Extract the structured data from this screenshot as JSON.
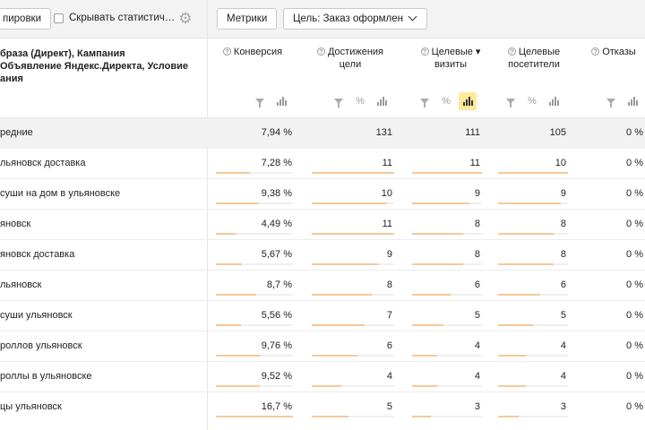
{
  "toolbar": {
    "grouping_label": "пировки",
    "hide_stats_label": "Скрывать статистич…",
    "metrics_label": "Метрики",
    "goal_label": "Цель: Заказ оформлен"
  },
  "header": {
    "dimension_title_lines": [
      "браза (Директ), Кампания",
      "Объявление Яндекс.Директа, Условие",
      "ания"
    ],
    "columns": [
      {
        "line1": "Конверсия",
        "line2": ""
      },
      {
        "line1": "Достижения",
        "line2": "цели"
      },
      {
        "line1": "Целевые ▾",
        "line2": "визиты"
      },
      {
        "line1": "Целевые",
        "line2": "посетители"
      },
      {
        "line1": "Отказы",
        "line2": ""
      }
    ],
    "help_glyph": "?",
    "percent_glyph": "%"
  },
  "rows": [
    {
      "name": "редние",
      "conv": "7,94 %",
      "goals": "131",
      "visits": "111",
      "visitors": "105",
      "bounce": "0 %",
      "conv_frac": 0,
      "goals_frac": 0,
      "visits_frac": 0,
      "visitors_frac": 0
    },
    {
      "name": "льяновск доставка",
      "conv": "7,28 %",
      "goals": "11",
      "visits": "11",
      "visitors": "10",
      "bounce": "0 %",
      "conv_frac": 0.44,
      "goals_frac": 1.0,
      "visits_frac": 1.0,
      "visitors_frac": 1.0
    },
    {
      "name": "суши на дом в ульяновске",
      "conv": "9,38 %",
      "goals": "10",
      "visits": "9",
      "visitors": "9",
      "bounce": "0 %",
      "conv_frac": 0.56,
      "goals_frac": 0.91,
      "visits_frac": 0.82,
      "visitors_frac": 0.9
    },
    {
      "name": "яновск",
      "conv": "4,49 %",
      "goals": "11",
      "visits": "8",
      "visitors": "8",
      "bounce": "0 %",
      "conv_frac": 0.27,
      "goals_frac": 1.0,
      "visits_frac": 0.73,
      "visitors_frac": 0.8
    },
    {
      "name": "яновск доставка",
      "conv": "5,67 %",
      "goals": "9",
      "visits": "8",
      "visitors": "8",
      "bounce": "0 %",
      "conv_frac": 0.34,
      "goals_frac": 0.82,
      "visits_frac": 0.73,
      "visitors_frac": 0.8
    },
    {
      "name": "льяновск",
      "conv": "8,7 %",
      "goals": "8",
      "visits": "6",
      "visitors": "6",
      "bounce": "0 %",
      "conv_frac": 0.52,
      "goals_frac": 0.73,
      "visits_frac": 0.55,
      "visitors_frac": 0.6
    },
    {
      "name": "суши ульяновск",
      "conv": "5,56 %",
      "goals": "7",
      "visits": "5",
      "visitors": "5",
      "bounce": "0 %",
      "conv_frac": 0.33,
      "goals_frac": 0.64,
      "visits_frac": 0.45,
      "visitors_frac": 0.5
    },
    {
      "name": "роллов ульяновск",
      "conv": "9,76 %",
      "goals": "6",
      "visits": "4",
      "visitors": "4",
      "bounce": "0 %",
      "conv_frac": 0.58,
      "goals_frac": 0.55,
      "visits_frac": 0.36,
      "visitors_frac": 0.4
    },
    {
      "name": "роллы в ульяновске",
      "conv": "9,52 %",
      "goals": "4",
      "visits": "4",
      "visitors": "4",
      "bounce": "0 %",
      "conv_frac": 0.57,
      "goals_frac": 0.36,
      "visits_frac": 0.36,
      "visitors_frac": 0.4
    },
    {
      "name": "цы ульяновск",
      "conv": "16,7 %",
      "goals": "5",
      "visits": "3",
      "visitors": "3",
      "bounce": "0 %",
      "conv_frac": 1.0,
      "goals_frac": 0.45,
      "visits_frac": 0.27,
      "visitors_frac": 0.3
    }
  ],
  "colors": {
    "bar_fill": "#f6c89a",
    "avg_row_bg": "#f2f2f2",
    "active_tool": "#ffe99a"
  }
}
